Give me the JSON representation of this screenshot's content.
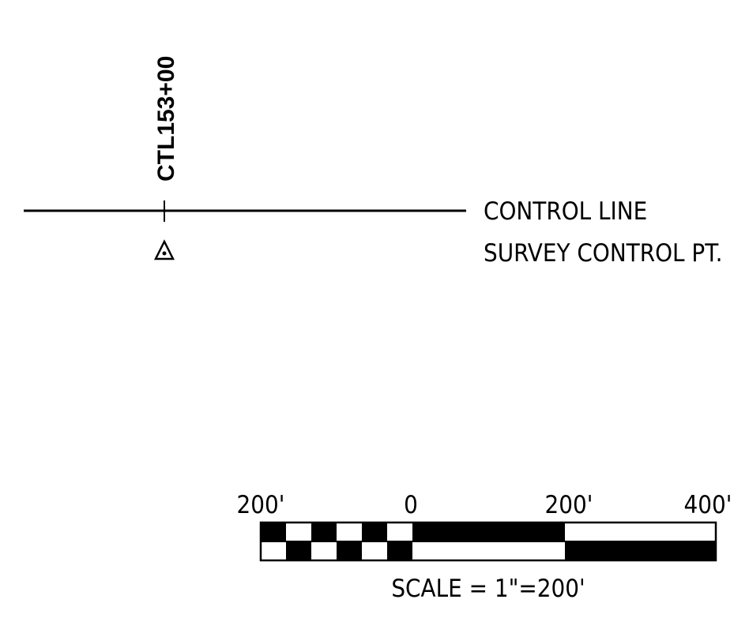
{
  "station_label": "CTL153+00",
  "legend": [
    {
      "label": "CONTROL LINE"
    },
    {
      "label": "SURVEY CONTROL PT."
    }
  ],
  "scale_bar": {
    "labels": [
      "200'",
      "0",
      "200'",
      "400'"
    ],
    "caption": "SCALE = 1\"=200'"
  }
}
